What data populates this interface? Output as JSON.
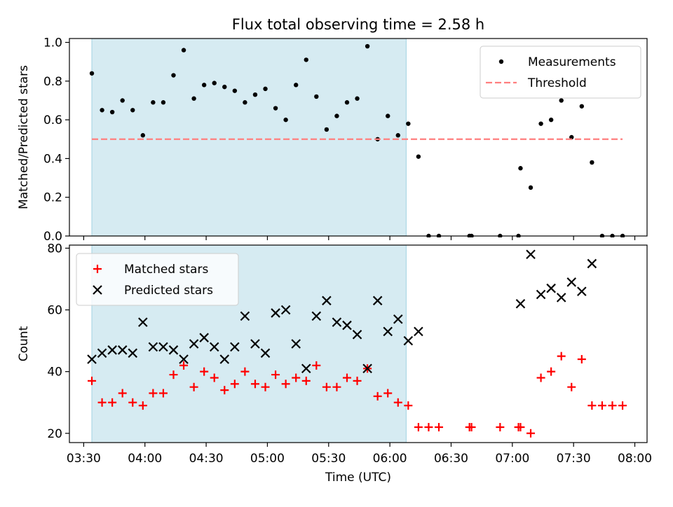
{
  "figure_title": "Flux total observing time = 2.58 h",
  "colors": {
    "shade": "#add8e6",
    "measurement": "#000000",
    "threshold": "#ff7f7f",
    "matched": "#ff0000",
    "predicted": "#000000"
  },
  "chart_data": [
    {
      "type": "scatter",
      "title": "Flux total observing time = 2.58 h",
      "xlabel": "",
      "ylabel": "Matched/Predicted stars",
      "ylim": [
        0,
        1.02
      ],
      "xlim": [
        "03:23",
        "08:06"
      ],
      "yticks": [
        "0.0",
        "0.2",
        "0.4",
        "0.6",
        "0.8",
        "1.0"
      ],
      "grid": false,
      "legend": "top-right",
      "shaded_region": {
        "x_start": "03:34",
        "x_end": "06:08"
      },
      "series": [
        {
          "name": "Measurements",
          "marker": "dot",
          "x": [
            "03:34",
            "03:39",
            "03:44",
            "03:49",
            "03:54",
            "03:59",
            "04:04",
            "04:09",
            "04:14",
            "04:19",
            "04:24",
            "04:29",
            "04:34",
            "04:39",
            "04:44",
            "04:49",
            "04:54",
            "04:59",
            "05:04",
            "05:09",
            "05:14",
            "05:19",
            "05:24",
            "05:29",
            "05:34",
            "05:39",
            "05:44",
            "05:49",
            "05:54",
            "05:59",
            "06:04",
            "06:09",
            "06:14",
            "06:19",
            "06:24",
            "06:39",
            "06:40",
            "06:54",
            "07:03",
            "07:04",
            "07:09",
            "07:14",
            "07:19",
            "07:24",
            "07:29",
            "07:34",
            "07:39",
            "07:44",
            "07:49",
            "07:54"
          ],
          "y": [
            0.84,
            0.65,
            0.64,
            0.7,
            0.65,
            0.52,
            0.69,
            0.69,
            0.83,
            0.96,
            0.71,
            0.78,
            0.79,
            0.77,
            0.75,
            0.69,
            0.73,
            0.76,
            0.66,
            0.6,
            0.78,
            0.91,
            0.72,
            0.55,
            0.62,
            0.69,
            0.71,
            0.98,
            0.5,
            0.62,
            0.52,
            0.58,
            0.41,
            0.0,
            0.0,
            0.0,
            0.0,
            0.0,
            0.0,
            0.35,
            0.25,
            0.58,
            0.6,
            0.7,
            0.51,
            0.67,
            0.38,
            0.0,
            0.0,
            0.0
          ]
        },
        {
          "name": "Threshold",
          "style": "dashed",
          "x": [
            "03:34",
            "07:54"
          ],
          "y": [
            0.5,
            0.5
          ]
        }
      ]
    },
    {
      "type": "scatter",
      "title": "",
      "xlabel": "Time (UTC)",
      "ylabel": "Count",
      "ylim": [
        17,
        81
      ],
      "xlim": [
        "03:23",
        "08:06"
      ],
      "yticks": [
        "20",
        "40",
        "60",
        "80"
      ],
      "xticks": [
        "03:30",
        "04:00",
        "04:30",
        "05:00",
        "05:30",
        "06:00",
        "06:30",
        "07:00",
        "07:30",
        "08:00"
      ],
      "grid": false,
      "legend": "top-left",
      "shaded_region": {
        "x_start": "03:34",
        "x_end": "06:08"
      },
      "series": [
        {
          "name": "Matched stars",
          "marker": "plus",
          "x": [
            "03:34",
            "03:39",
            "03:44",
            "03:49",
            "03:54",
            "03:59",
            "04:04",
            "04:09",
            "04:14",
            "04:19",
            "04:24",
            "04:29",
            "04:34",
            "04:39",
            "04:44",
            "04:49",
            "04:54",
            "04:59",
            "05:04",
            "05:09",
            "05:14",
            "05:19",
            "05:24",
            "05:29",
            "05:34",
            "05:39",
            "05:44",
            "05:49",
            "05:54",
            "05:59",
            "06:04",
            "06:09",
            "06:14",
            "06:19",
            "06:24",
            "06:39",
            "06:40",
            "06:54",
            "07:03",
            "07:04",
            "07:09",
            "07:14",
            "07:19",
            "07:24",
            "07:29",
            "07:34",
            "07:39",
            "07:44",
            "07:49",
            "07:54"
          ],
          "y": [
            37,
            30,
            30,
            33,
            30,
            29,
            33,
            33,
            39,
            42,
            35,
            40,
            38,
            34,
            36,
            40,
            36,
            35,
            39,
            36,
            38,
            37,
            42,
            35,
            35,
            38,
            37,
            41,
            32,
            33,
            30,
            29,
            22,
            22,
            22,
            22,
            22,
            22,
            22,
            22,
            20,
            38,
            40,
            45,
            35,
            44,
            29,
            29,
            29,
            29
          ]
        },
        {
          "name": "Predicted stars",
          "marker": "x",
          "x": [
            "03:34",
            "03:39",
            "03:44",
            "03:49",
            "03:54",
            "03:59",
            "04:04",
            "04:09",
            "04:14",
            "04:19",
            "04:24",
            "04:29",
            "04:34",
            "04:39",
            "04:44",
            "04:49",
            "04:54",
            "04:59",
            "05:04",
            "05:09",
            "05:14",
            "05:19",
            "05:24",
            "05:29",
            "05:34",
            "05:39",
            "05:44",
            "05:49",
            "05:54",
            "05:59",
            "06:04",
            "06:09",
            "06:14",
            "07:04",
            "07:09",
            "07:14",
            "07:19",
            "07:24",
            "07:29",
            "07:34",
            "07:39"
          ],
          "y": [
            44,
            46,
            47,
            47,
            46,
            56,
            48,
            48,
            47,
            44,
            49,
            51,
            48,
            44,
            48,
            58,
            49,
            46,
            59,
            60,
            49,
            41,
            58,
            63,
            56,
            55,
            52,
            41,
            63,
            53,
            57,
            50,
            53,
            62,
            78,
            65,
            67,
            64,
            69,
            66,
            75
          ]
        }
      ]
    }
  ]
}
